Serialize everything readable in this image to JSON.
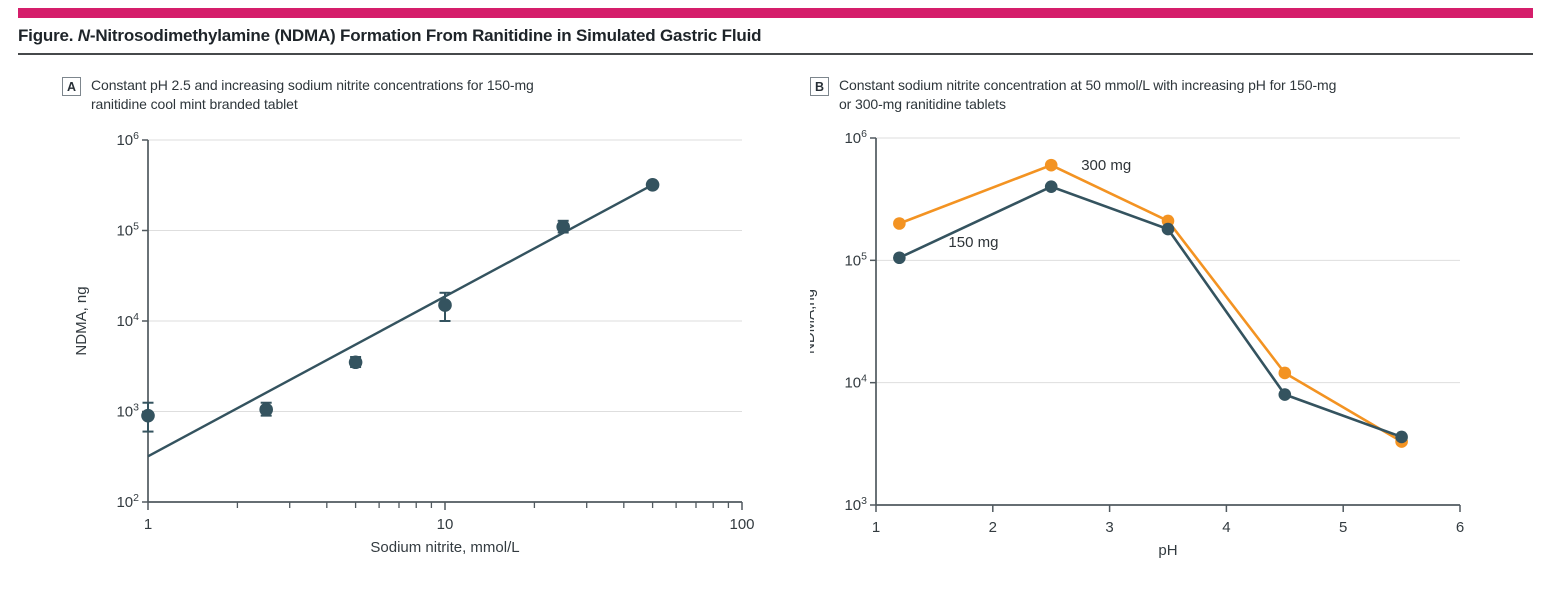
{
  "header": {
    "title_prefix": "Figure. ",
    "title_italic": "N",
    "title_rest": "-Nitrosodimethylamine (NDMA) Formation From Ranitidine in Simulated Gastric Fluid"
  },
  "colors": {
    "brand": "#d51e6b",
    "slate": "#34535f",
    "orange": "#f39322",
    "grid": "#dedede",
    "axis": "#50595f",
    "tick_text": "#333b40",
    "annotation_text": "#2e3438"
  },
  "panels": [
    {
      "label": "A",
      "caption": "Constant pH 2.5 and increasing sodium nitrite concentrations for 150-mg ranitidine cool mint branded tablet"
    },
    {
      "label": "B",
      "caption": "Constant sodium nitrite concentration at 50 mmol/L with increasing pH for 150-mg or 300-mg ranitidine tablets"
    }
  ],
  "chart_data": [
    {
      "type": "scatter",
      "title": "Panel A",
      "xlabel": "Sodium nitrite, mmol/L",
      "ylabel": "NDMA, ng",
      "xscale": "log",
      "yscale": "log",
      "xlim": [
        1,
        100
      ],
      "ylim": [
        100,
        1000000
      ],
      "grid": "horizontal",
      "x": [
        1,
        2.5,
        5,
        10,
        25,
        50
      ],
      "y": [
        900,
        1050,
        3500,
        15000,
        110000,
        320000
      ],
      "y_err_low": [
        600,
        900,
        3100,
        10000,
        95000,
        null
      ],
      "y_err_high": [
        1250,
        1250,
        4000,
        20500,
        128000,
        null
      ],
      "fit_line": {
        "x": [
          1,
          50
        ],
        "y": [
          320,
          320000
        ]
      },
      "series_color_key": "slate"
    },
    {
      "type": "line",
      "title": "Panel B",
      "xlabel": "pH",
      "ylabel": "NDMA,ng",
      "xscale": "linear",
      "yscale": "log",
      "xlim": [
        1,
        6
      ],
      "ylim": [
        1000,
        1000000
      ],
      "grid": "horizontal",
      "x": [
        1.2,
        2.5,
        3.5,
        4.5,
        5.5
      ],
      "series": [
        {
          "name": "300 mg",
          "color_key": "orange",
          "values": [
            200000,
            600000,
            210000,
            12000,
            3300
          ]
        },
        {
          "name": "150 mg",
          "color_key": "slate",
          "values": [
            105000,
            400000,
            180000,
            8000,
            3600
          ]
        }
      ],
      "annotations": [
        {
          "text": "300 mg",
          "x": 2.5,
          "y": 600000,
          "dx": 30,
          "dy": 5
        },
        {
          "text": "150 mg",
          "x": 1.62,
          "y": 128000,
          "dx": 0,
          "dy": 0
        }
      ]
    }
  ]
}
